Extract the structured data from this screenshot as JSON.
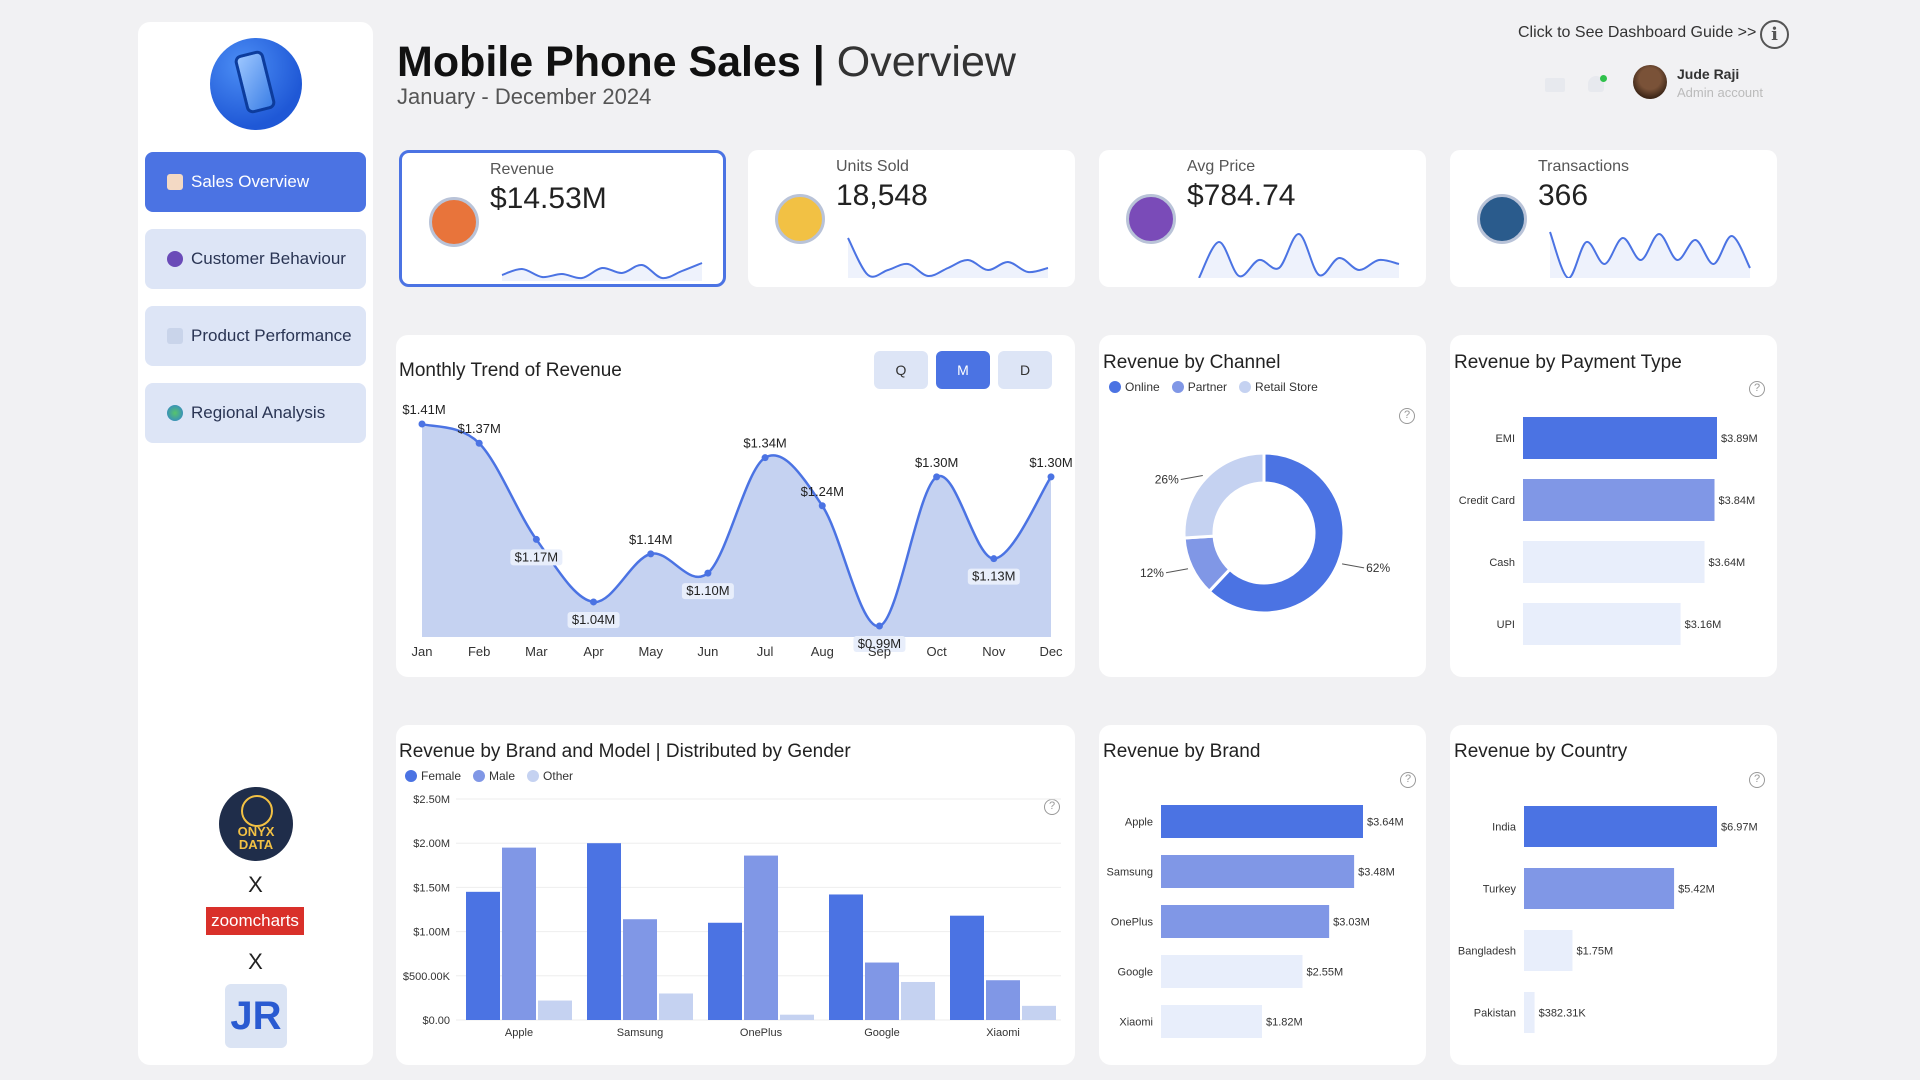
{
  "header": {
    "title_bold": "Mobile Phone Sales |",
    "title_light": "Overview",
    "subtitle": "January - December 2024",
    "guide_link": "Click to See Dashboard Guide >>",
    "user_name": "Jude Raji",
    "user_role": "Admin account"
  },
  "sidebar": {
    "items": [
      {
        "label": "Sales Overview",
        "active": true
      },
      {
        "label": "Customer Behaviour",
        "active": false
      },
      {
        "label": "Product Performance",
        "active": false
      },
      {
        "label": "Regional Analysis",
        "active": false
      }
    ],
    "brands": {
      "onyx_line1": "ONYX",
      "onyx_line2": "DATA",
      "sep": "X",
      "zoomcharts": "zoomcharts",
      "jr": "JR"
    }
  },
  "kpis": [
    {
      "label": "Revenue",
      "value": "$14.53M",
      "icon": "coins-icon",
      "icon_color": "#e8743b",
      "spark": [
        52,
        46,
        54,
        51,
        55,
        45,
        50,
        42,
        55,
        48,
        40
      ]
    },
    {
      "label": "Units Sold",
      "value": "18,548",
      "icon": "box-icon",
      "icon_color": "#f2c144",
      "spark": [
        18,
        55,
        50,
        44,
        56,
        48,
        40,
        50,
        42,
        52,
        48
      ]
    },
    {
      "label": "Avg Price",
      "value": "$784.74",
      "icon": "wallet-icon",
      "icon_color": "#7a4bb8",
      "spark": [
        58,
        22,
        56,
        40,
        48,
        14,
        55,
        38,
        50,
        40,
        44
      ]
    },
    {
      "label": "Transactions",
      "value": "366",
      "icon": "handshake-icon",
      "icon_color": "#2a5b8c",
      "spark": [
        12,
        58,
        22,
        44,
        18,
        40,
        14,
        40,
        20,
        44,
        16,
        48
      ]
    }
  ],
  "colors": {
    "primary": "#4b73e3",
    "mid": "#8097e6",
    "light": "#c5d2f1",
    "lighter": "#e8eefb"
  },
  "trend": {
    "title": "Monthly Trend of Revenue",
    "buttons": [
      {
        "label": "Q",
        "active": false
      },
      {
        "label": "M",
        "active": true
      },
      {
        "label": "D",
        "active": false
      }
    ]
  },
  "channel": {
    "title": "Revenue by Channel"
  },
  "payment": {
    "title": "Revenue by Payment Type"
  },
  "brandgender": {
    "title": "Revenue by Brand and Model | Distributed by Gender"
  },
  "brand": {
    "title": "Revenue by Brand"
  },
  "country": {
    "title": "Revenue by Country"
  },
  "chart_data": [
    {
      "id": "trend",
      "type": "area",
      "title": "Monthly Trend of Revenue",
      "categories": [
        "Jan",
        "Feb",
        "Mar",
        "Apr",
        "May",
        "Jun",
        "Jul",
        "Aug",
        "Sep",
        "Oct",
        "Nov",
        "Dec"
      ],
      "values": [
        1.41,
        1.37,
        1.17,
        1.04,
        1.14,
        1.1,
        1.34,
        1.24,
        0.99,
        1.3,
        1.13,
        1.3
      ],
      "labels": [
        "$1.41M",
        "$1.37M",
        "$1.17M",
        "$1.04M",
        "$1.14M",
        "$1.10M",
        "$1.34M",
        "$1.24M",
        "$0.99M",
        "$1.30M",
        "$1.13M",
        "$1.30M"
      ]
    },
    {
      "id": "channel",
      "type": "pie",
      "title": "Revenue by Channel",
      "categories": [
        "Online",
        "Partner",
        "Retail Store"
      ],
      "values": [
        62,
        12,
        26
      ],
      "labels": [
        "62%",
        "12%",
        "26%"
      ],
      "colors": [
        "#4b73e3",
        "#8097e6",
        "#c5d2f1"
      ]
    },
    {
      "id": "payment",
      "type": "bar",
      "title": "Revenue by Payment Type",
      "categories": [
        "EMI",
        "Credit Card",
        "Cash",
        "UPI"
      ],
      "values": [
        3.89,
        3.84,
        3.64,
        3.16
      ],
      "labels": [
        "$3.89M",
        "$3.84M",
        "$3.64M",
        "$3.16M"
      ],
      "colors": [
        "#4b73e3",
        "#8097e6",
        "#e8eefb",
        "#e8eefb"
      ]
    },
    {
      "id": "brandgender",
      "type": "bar",
      "title": "Revenue by Brand and Model | Distributed by Gender",
      "categories": [
        "Apple",
        "Samsung",
        "OnePlus",
        "Google",
        "Xiaomi"
      ],
      "series": [
        {
          "name": "Female",
          "values": [
            1.45,
            2.0,
            1.1,
            1.42,
            1.18
          ],
          "color": "#4b73e3"
        },
        {
          "name": "Male",
          "values": [
            1.95,
            1.14,
            1.86,
            0.65,
            0.45
          ],
          "color": "#8097e6"
        },
        {
          "name": "Other",
          "values": [
            0.22,
            0.3,
            0.06,
            0.43,
            0.16
          ],
          "color": "#c5d2f1"
        }
      ],
      "yticks": [
        "$0.00",
        "$500.00K",
        "$1.00M",
        "$1.50M",
        "$2.00M",
        "$2.50M"
      ],
      "ylim": [
        0,
        2.5
      ]
    },
    {
      "id": "brand",
      "type": "bar",
      "title": "Revenue by Brand",
      "categories": [
        "Apple",
        "Samsung",
        "OnePlus",
        "Google",
        "Xiaomi"
      ],
      "values": [
        3.64,
        3.48,
        3.03,
        2.55,
        1.82
      ],
      "labels": [
        "$3.64M",
        "$3.48M",
        "$3.03M",
        "$2.55M",
        "$1.82M"
      ],
      "colors": [
        "#4b73e3",
        "#8097e6",
        "#8097e6",
        "#e8eefb",
        "#e8eefb"
      ]
    },
    {
      "id": "country",
      "type": "bar",
      "title": "Revenue by Country",
      "categories": [
        "India",
        "Turkey",
        "Bangladesh",
        "Pakistan"
      ],
      "values": [
        6.97,
        5.42,
        1.75,
        0.38231
      ],
      "labels": [
        "$6.97M",
        "$5.42M",
        "$1.75M",
        "$382.31K"
      ],
      "colors": [
        "#4b73e3",
        "#8097e6",
        "#e8eefb",
        "#e8eefb"
      ]
    }
  ]
}
